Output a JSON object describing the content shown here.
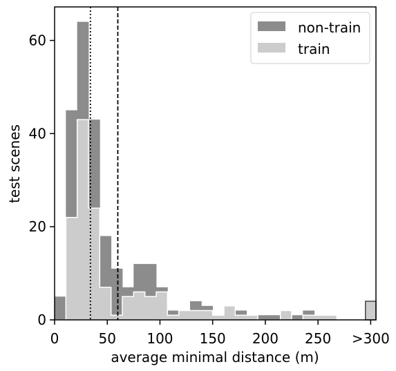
{
  "chart_data": {
    "type": "bar",
    "xlabel": "average minimal distance (m)",
    "ylabel": "test scenes",
    "xlim": [
      0,
      305
    ],
    "ylim": [
      0,
      67.2
    ],
    "grid": false,
    "x_ticks": [
      {
        "value": 0,
        "label": "0"
      },
      {
        "value": 50,
        "label": "50"
      },
      {
        "value": 100,
        "label": "100"
      },
      {
        "value": 150,
        "label": "150"
      },
      {
        "value": 200,
        "label": "200"
      },
      {
        "value": 250,
        "label": "250"
      },
      {
        "value": 300,
        "label": ">300"
      }
    ],
    "y_ticks": [
      {
        "value": 0,
        "label": "0"
      },
      {
        "value": 20,
        "label": "20"
      },
      {
        "value": 40,
        "label": "40"
      },
      {
        "value": 60,
        "label": "60"
      }
    ],
    "bin_edges": [
      0,
      10.71,
      21.43,
      32.14,
      42.86,
      53.57,
      64.29,
      75,
      85.71,
      96.43,
      107.14,
      117.86,
      128.57,
      139.29,
      150,
      160.71,
      171.43,
      182.14,
      192.86,
      203.57,
      214.29,
      225,
      235.71,
      246.43,
      257.14,
      267.86,
      278.57,
      289.29,
      300
    ],
    "series": [
      {
        "name": "non-train",
        "color": "#8c8c8c",
        "values": [
          5,
          45,
          64,
          43,
          18,
          11,
          7,
          12,
          12,
          7,
          2,
          2,
          4,
          3,
          1,
          1,
          2,
          1,
          1,
          1,
          0,
          1,
          2,
          0,
          0,
          0,
          0,
          0
        ]
      },
      {
        "name": "train",
        "color": "#cccccc",
        "edge_color": "#ffffff",
        "values": [
          0,
          22,
          43,
          24,
          7,
          1,
          5,
          6,
          5,
          6,
          1,
          2,
          2,
          2,
          1,
          3,
          1,
          1,
          0,
          0,
          2,
          0,
          1,
          1,
          1,
          0,
          0,
          0
        ]
      }
    ],
    "overflow": {
      "label": ">300",
      "x_range": [
        295,
        305
      ],
      "value": 4,
      "fill": "#cccccc",
      "edge_color": "#444444"
    },
    "reference_lines": [
      {
        "x": 34,
        "style": "dotted",
        "color": "#000000"
      },
      {
        "x": 60,
        "style": "dashed",
        "color": "#000000"
      }
    ],
    "legend": {
      "position": "top-right"
    }
  }
}
